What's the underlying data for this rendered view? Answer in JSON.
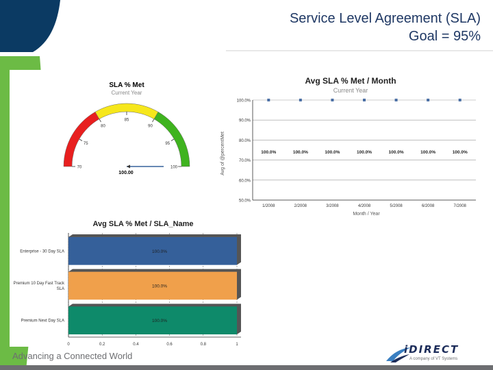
{
  "slide": {
    "title_line1": "Service Level Agreement (SLA)",
    "title_line2": "Goal = 95%",
    "footer_tagline": "Advancing a Connected World",
    "logo_text": "iDIRECT",
    "logo_subtext": "A company of VT Systems"
  },
  "colors": {
    "navy": "#0b3a63",
    "green": "#6cbb45",
    "bar_blue": "#35609a",
    "bar_orange": "#f0a04b",
    "bar_teal": "#0e8a6a",
    "gauge_red": "#e81f1f",
    "gauge_yellow": "#f6e71c",
    "gauge_green": "#3fb31f"
  },
  "chart_data": [
    {
      "type": "gauge",
      "title": "SLA % Met",
      "subtitle": "Current Year",
      "value": 100,
      "value_label": "100.00",
      "min": 70,
      "max": 100,
      "ticks": [
        {
          "value": 70,
          "label": "70"
        },
        {
          "value": 75,
          "label": "75"
        },
        {
          "value": 80,
          "label": "80"
        },
        {
          "value": 85,
          "label": "85"
        },
        {
          "value": 90,
          "label": "90"
        },
        {
          "value": 95,
          "label": "95"
        },
        {
          "value": 100,
          "label": "100"
        }
      ],
      "bands": [
        {
          "from": 70,
          "to": 80,
          "color": "#e81f1f"
        },
        {
          "from": 80,
          "to": 90,
          "color": "#f6e71c"
        },
        {
          "from": 90,
          "to": 100,
          "color": "#3fb31f"
        }
      ]
    },
    {
      "type": "line",
      "title": "Avg SLA % Met / Month",
      "subtitle": "Current Year",
      "xlabel": "Month / Year",
      "ylabel": "Avg of @percentMet",
      "ylim": [
        50,
        100
      ],
      "yticks": [
        50,
        60,
        70,
        80,
        90,
        100
      ],
      "ytick_labels": [
        "50.0%",
        "60.0%",
        "70.0%",
        "80.0%",
        "90.0%",
        "100.0%"
      ],
      "categories": [
        "1/2008",
        "2/2008",
        "3/2008",
        "4/2008",
        "5/2008",
        "6/2008",
        "7/2008"
      ],
      "values": [
        100,
        100,
        100,
        100,
        100,
        100,
        100
      ],
      "value_labels": [
        "100.0%",
        "100.0%",
        "100.0%",
        "100.0%",
        "100.0%",
        "100.0%",
        "100.0%"
      ]
    },
    {
      "type": "bar",
      "orientation": "horizontal",
      "title": "Avg SLA % Met / SLA_Name",
      "categories": [
        "Enterprise - 30 Day SLA",
        "Premium 10 Day Fast Track SLA",
        "Premium Next Day SLA"
      ],
      "values": [
        1,
        1,
        1
      ],
      "value_labels": [
        "100.0%",
        "100.0%",
        "100.0%"
      ],
      "xlim": [
        0,
        1
      ],
      "xticks": [
        0,
        0.2,
        0.4,
        0.6,
        0.8,
        1
      ],
      "xtick_labels": [
        "0",
        "0.2",
        "0.4",
        "0.6",
        "0.8",
        "1"
      ]
    }
  ]
}
